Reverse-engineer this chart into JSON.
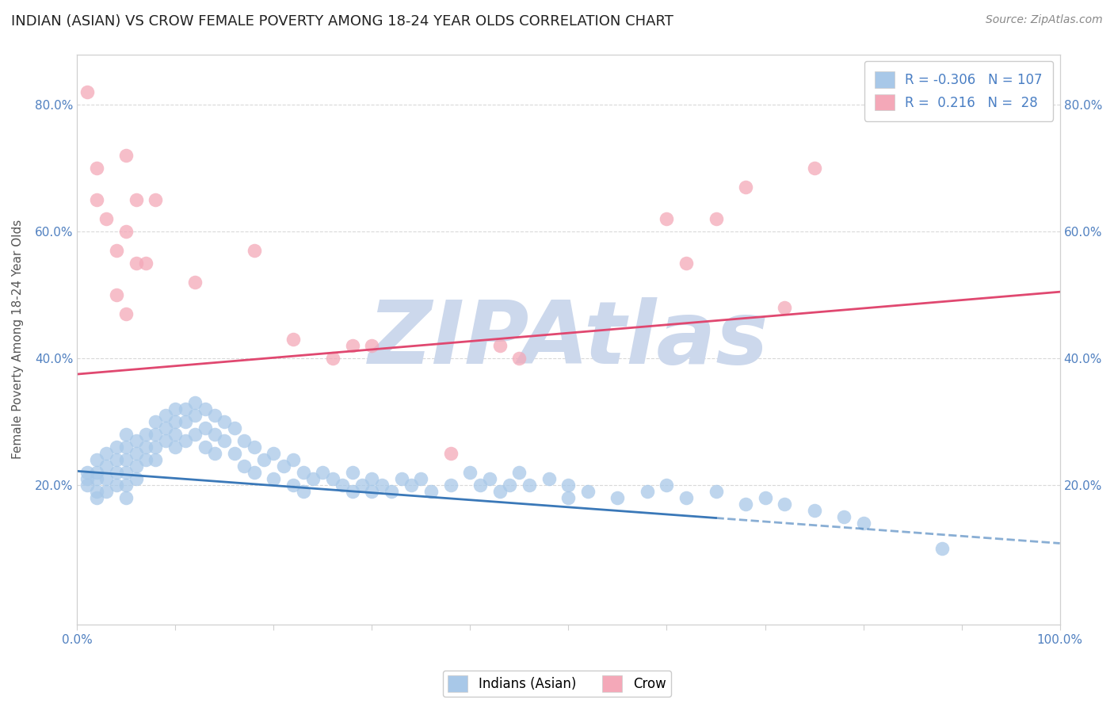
{
  "title": "INDIAN (ASIAN) VS CROW FEMALE POVERTY AMONG 18-24 YEAR OLDS CORRELATION CHART",
  "source_text": "Source: ZipAtlas.com",
  "ylabel": "Female Poverty Among 18-24 Year Olds",
  "xlim": [
    0,
    1.0
  ],
  "ylim": [
    -0.02,
    0.88
  ],
  "xticks": [
    0.0,
    0.1,
    0.2,
    0.3,
    0.4,
    0.5,
    0.6,
    0.7,
    0.8,
    0.9,
    1.0
  ],
  "xtick_labels": [
    "0.0%",
    "",
    "",
    "",
    "",
    "",
    "",
    "",
    "",
    "",
    "100.0%"
  ],
  "ytick_labels": [
    "20.0%",
    "40.0%",
    "60.0%",
    "80.0%"
  ],
  "yticks": [
    0.2,
    0.4,
    0.6,
    0.8
  ],
  "legend_r_blue": "-0.306",
  "legend_n_blue": "107",
  "legend_r_pink": "0.216",
  "legend_n_pink": "28",
  "blue_color": "#a8c8e8",
  "pink_color": "#f4a8b8",
  "blue_line_color": "#3a78b8",
  "pink_line_color": "#e04870",
  "watermark": "ZIPAtlas",
  "watermark_color": "#ccd8ec",
  "blue_line_x0": 0.0,
  "blue_line_y0": 0.222,
  "blue_line_x1": 0.65,
  "blue_line_y1": 0.148,
  "blue_line_dash_x0": 0.65,
  "blue_line_dash_y0": 0.148,
  "blue_line_dash_x1": 1.0,
  "blue_line_dash_y1": 0.108,
  "pink_line_x0": 0.0,
  "pink_line_y0": 0.375,
  "pink_line_x1": 1.0,
  "pink_line_y1": 0.505,
  "blue_scatter_x": [
    0.01,
    0.01,
    0.01,
    0.02,
    0.02,
    0.02,
    0.02,
    0.02,
    0.03,
    0.03,
    0.03,
    0.03,
    0.04,
    0.04,
    0.04,
    0.04,
    0.05,
    0.05,
    0.05,
    0.05,
    0.05,
    0.05,
    0.06,
    0.06,
    0.06,
    0.06,
    0.07,
    0.07,
    0.07,
    0.08,
    0.08,
    0.08,
    0.08,
    0.09,
    0.09,
    0.09,
    0.1,
    0.1,
    0.1,
    0.1,
    0.11,
    0.11,
    0.11,
    0.12,
    0.12,
    0.12,
    0.13,
    0.13,
    0.13,
    0.14,
    0.14,
    0.14,
    0.15,
    0.15,
    0.16,
    0.16,
    0.17,
    0.17,
    0.18,
    0.18,
    0.19,
    0.2,
    0.2,
    0.21,
    0.22,
    0.22,
    0.23,
    0.23,
    0.24,
    0.25,
    0.26,
    0.27,
    0.28,
    0.28,
    0.29,
    0.3,
    0.3,
    0.31,
    0.32,
    0.33,
    0.34,
    0.35,
    0.36,
    0.38,
    0.4,
    0.41,
    0.42,
    0.43,
    0.44,
    0.45,
    0.46,
    0.48,
    0.5,
    0.5,
    0.52,
    0.55,
    0.58,
    0.6,
    0.62,
    0.65,
    0.68,
    0.7,
    0.72,
    0.75,
    0.78,
    0.8,
    0.88
  ],
  "blue_scatter_y": [
    0.22,
    0.21,
    0.2,
    0.24,
    0.22,
    0.21,
    0.19,
    0.18,
    0.25,
    0.23,
    0.21,
    0.19,
    0.26,
    0.24,
    0.22,
    0.2,
    0.28,
    0.26,
    0.24,
    0.22,
    0.2,
    0.18,
    0.27,
    0.25,
    0.23,
    0.21,
    0.28,
    0.26,
    0.24,
    0.3,
    0.28,
    0.26,
    0.24,
    0.31,
    0.29,
    0.27,
    0.32,
    0.3,
    0.28,
    0.26,
    0.32,
    0.3,
    0.27,
    0.33,
    0.31,
    0.28,
    0.32,
    0.29,
    0.26,
    0.31,
    0.28,
    0.25,
    0.3,
    0.27,
    0.29,
    0.25,
    0.27,
    0.23,
    0.26,
    0.22,
    0.24,
    0.25,
    0.21,
    0.23,
    0.24,
    0.2,
    0.22,
    0.19,
    0.21,
    0.22,
    0.21,
    0.2,
    0.22,
    0.19,
    0.2,
    0.21,
    0.19,
    0.2,
    0.19,
    0.21,
    0.2,
    0.21,
    0.19,
    0.2,
    0.22,
    0.2,
    0.21,
    0.19,
    0.2,
    0.22,
    0.2,
    0.21,
    0.2,
    0.18,
    0.19,
    0.18,
    0.19,
    0.2,
    0.18,
    0.19,
    0.17,
    0.18,
    0.17,
    0.16,
    0.15,
    0.14,
    0.1
  ],
  "pink_scatter_x": [
    0.01,
    0.02,
    0.02,
    0.03,
    0.04,
    0.04,
    0.05,
    0.05,
    0.05,
    0.06,
    0.06,
    0.07,
    0.08,
    0.12,
    0.18,
    0.22,
    0.26,
    0.28,
    0.3,
    0.38,
    0.43,
    0.45,
    0.6,
    0.62,
    0.65,
    0.68,
    0.72,
    0.75
  ],
  "pink_scatter_y": [
    0.82,
    0.7,
    0.65,
    0.62,
    0.57,
    0.5,
    0.72,
    0.6,
    0.47,
    0.65,
    0.55,
    0.55,
    0.65,
    0.52,
    0.57,
    0.43,
    0.4,
    0.42,
    0.42,
    0.25,
    0.42,
    0.4,
    0.62,
    0.55,
    0.62,
    0.67,
    0.48,
    0.7
  ]
}
